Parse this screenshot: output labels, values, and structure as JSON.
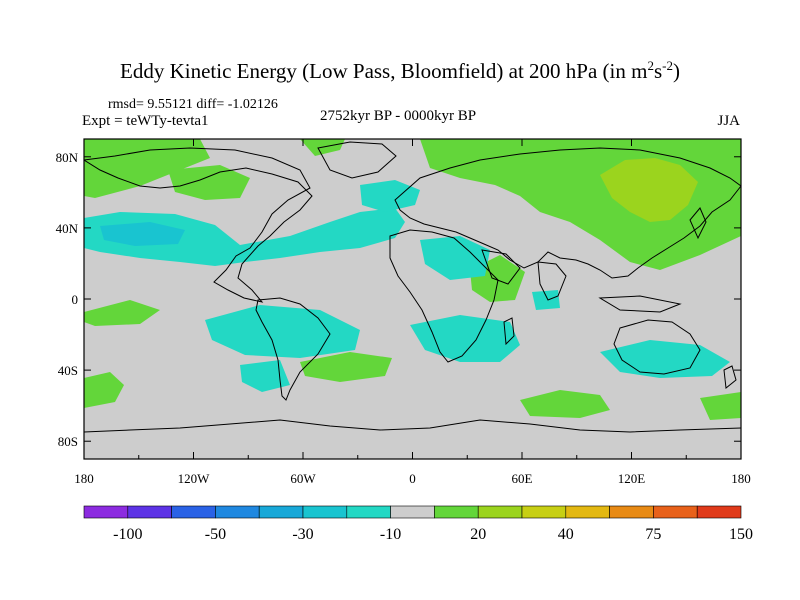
{
  "header": {
    "title_main": "Eddy Kinetic Energy (Low Pass, Bloomfield) at 200 hPa (in m",
    "title_sup1": "2",
    "title_mid": "s",
    "title_sup2": "-2",
    "title_end": ")",
    "stats": "rmsd= 9.55121 diff= -1.02126",
    "experiment": "Expt = teWTy-tevta1",
    "period": "2752kyr BP - 0000kyr BP",
    "season": "JJA"
  },
  "axes": {
    "x_ticks": [
      "180",
      "120W",
      "60W",
      "0",
      "60E",
      "120E",
      "180"
    ],
    "x_values": [
      -180,
      -120,
      -60,
      0,
      60,
      120,
      180
    ],
    "y_ticks": [
      "80N",
      "40N",
      "0",
      "40S",
      "80S"
    ],
    "y_values": [
      80,
      40,
      0,
      -40,
      -80
    ],
    "lon_range": [
      -180,
      180
    ],
    "lat_range": [
      -90,
      90
    ]
  },
  "colorbar": {
    "colors": [
      "#8c2be0",
      "#5d33e6",
      "#2a62e6",
      "#1f88e0",
      "#18a8d8",
      "#19c4d0",
      "#23d8c4",
      "#cdcdcd",
      "#63d63a",
      "#9bd41e",
      "#c7cf14",
      "#e3b812",
      "#e88a14",
      "#e8611a",
      "#e03a1a"
    ],
    "labels": [
      "-100",
      "-50",
      "-30",
      "-10",
      "20",
      "40",
      "75",
      "150"
    ],
    "label_bounds": [
      1,
      3,
      5,
      7,
      9,
      11,
      13,
      15
    ]
  },
  "colors": {
    "background_field": "#cdcdcd",
    "positive_light": "#63d63a",
    "positive_mid": "#9bd41e",
    "negative_light": "#23d8c4",
    "negative_mid": "#19c4d0"
  }
}
